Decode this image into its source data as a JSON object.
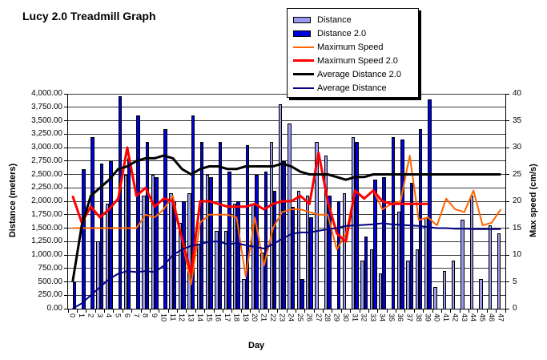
{
  "chart_data": {
    "type": "bar+line combo",
    "title": "Lucy 2.0 Treadmill Graph",
    "categories": [
      "0",
      "1",
      "2",
      "3",
      "4",
      "5",
      "6",
      "7",
      "8",
      "9",
      "10",
      "11",
      "12",
      "13",
      "14",
      "15",
      "16",
      "17",
      "18",
      "19",
      "20",
      "21",
      "22",
      "23",
      "24",
      "25",
      "26",
      "27",
      "28",
      "29",
      "30",
      "31",
      "32",
      "33",
      "34",
      "35",
      "36",
      "37",
      "38",
      "39",
      "40",
      "41",
      "42",
      "43",
      "44",
      "45",
      "46",
      "47"
    ],
    "x_axis": {
      "label": "Day"
    },
    "left_axis": {
      "label": "Distance (meters)",
      "min": 0,
      "max": 4000,
      "step": 250,
      "ticks": [
        "4,000.00",
        "3,750.00",
        "3,500.00",
        "3,250.00",
        "3,000.00",
        "2,750.00",
        "2,500.00",
        "2,250.00",
        "2,000.00",
        "1,750.00",
        "1,500.00",
        "1,250.00",
        "1,000.00",
        "750.00",
        "500.00",
        "250.00",
        "0.00"
      ]
    },
    "right_axis": {
      "label": "Max speed (cm/s)",
      "min": 0,
      "max": 40,
      "step": 5,
      "ticks": [
        "40",
        "35",
        "30",
        "25",
        "20",
        "15",
        "10",
        "5",
        "0"
      ]
    },
    "grid": "horizontal",
    "legend_position": "top-center-boxed-with-shadow",
    "series": [
      {
        "name": "Distance",
        "type": "bar",
        "axis": "left",
        "color": "#9999EE",
        "values": [
          0,
          0,
          0,
          1250,
          1950,
          0,
          2500,
          0,
          2100,
          2500,
          0,
          2150,
          1600,
          2150,
          1200,
          2500,
          1450,
          1450,
          1950,
          550,
          1950,
          1050,
          3100,
          3800,
          3450,
          2200,
          2100,
          3100,
          2850,
          0,
          2150,
          3200,
          900,
          1100,
          650,
          0,
          1800,
          900,
          1100,
          1700,
          400,
          700,
          900,
          1650,
          2100,
          550,
          1550,
          1400
        ]
      },
      {
        "name": "Distance 2.0",
        "type": "bar",
        "axis": "left",
        "color": "#0000DC",
        "values": [
          500,
          2600,
          3200,
          2700,
          2750,
          3950,
          2800,
          3600,
          3100,
          2450,
          3350,
          2000,
          2000,
          3600,
          3100,
          2450,
          3100,
          2550,
          2000,
          3050,
          2500,
          2550,
          2200,
          2750,
          1900,
          550,
          1700,
          0,
          2100,
          2000,
          0,
          3100,
          1350,
          2400,
          2450,
          3200,
          3150,
          2350,
          3350,
          3900,
          0,
          0,
          0,
          0,
          0,
          0,
          0,
          0
        ]
      },
      {
        "name": "Maximum Speed",
        "type": "line",
        "axis": "right",
        "color": "#FF6600",
        "stroke_width": 2,
        "values": [
          15,
          15,
          15,
          15,
          15,
          15,
          15,
          15,
          17.5,
          17,
          18.5,
          21,
          13,
          4.5,
          16,
          17.5,
          17.5,
          17.5,
          17,
          6,
          17,
          8,
          15,
          18,
          18.5,
          18.5,
          18,
          17.5,
          17.5,
          11,
          14,
          22,
          20.5,
          22,
          18.5,
          19.5,
          20,
          28.5,
          16.5,
          17,
          15.5,
          20.5,
          18.5,
          18,
          22,
          15.5,
          16,
          18.5
        ]
      },
      {
        "name": "Maximum Speed 2.0",
        "type": "line",
        "axis": "right",
        "color": "#FF0000",
        "stroke_width": 3,
        "values": [
          21,
          16,
          19,
          17,
          18.5,
          20.5,
          30,
          21,
          22.5,
          19,
          20.5,
          20,
          13,
          6.5,
          20,
          20,
          19.5,
          19,
          19,
          19,
          19.5,
          18.5,
          19.5,
          20,
          20,
          21,
          19.5,
          29,
          20,
          14,
          12.5,
          22,
          20.5,
          22,
          20,
          19.5,
          19.5,
          19.5,
          19.5,
          19.5,
          null,
          null,
          null,
          null,
          null,
          null,
          null,
          null
        ]
      },
      {
        "name": "Average Distance 2.0",
        "type": "line",
        "axis": "left",
        "color": "#000000",
        "stroke_width": 3,
        "values": [
          500,
          1550,
          2100,
          2250,
          2400,
          2600,
          2650,
          2750,
          2800,
          2800,
          2850,
          2800,
          2600,
          2500,
          2600,
          2650,
          2650,
          2600,
          2600,
          2650,
          2650,
          2650,
          2650,
          2700,
          2650,
          2550,
          2500,
          2500,
          2500,
          2450,
          2400,
          2450,
          2450,
          2500,
          2500,
          2500,
          2500,
          2500,
          2500,
          2500,
          2500,
          2500,
          2500,
          2500,
          2500,
          2500,
          2500,
          2500
        ]
      },
      {
        "name": "Average Distance",
        "type": "line",
        "axis": "left",
        "color": "#000080",
        "stroke_width": 2,
        "values": [
          0,
          100,
          250,
          400,
          550,
          650,
          700,
          680,
          700,
          680,
          800,
          1000,
          1100,
          1170,
          1200,
          1250,
          1250,
          1200,
          1220,
          1180,
          1150,
          1120,
          1200,
          1300,
          1390,
          1420,
          1420,
          1450,
          1480,
          1500,
          1540,
          1550,
          1560,
          1570,
          1590,
          1570,
          1560,
          1550,
          1540,
          1520,
          1500,
          1500,
          1490,
          1490,
          1480,
          1480,
          1480,
          1480
        ]
      }
    ],
    "legend": [
      "Distance",
      "Distance 2.0",
      "Maximum Speed",
      "Maximum Speed 2.0",
      "Average Distance 2.0",
      "Average Distance"
    ]
  }
}
